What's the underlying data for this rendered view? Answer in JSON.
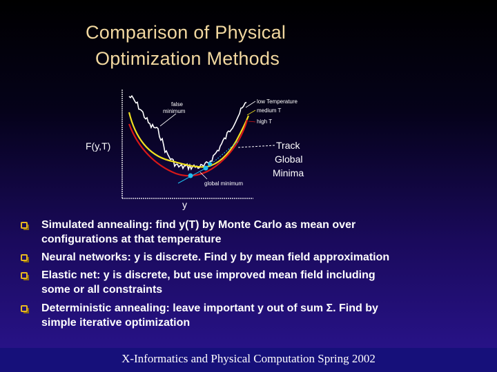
{
  "slide": {
    "title_line1": "Comparison of Physical",
    "title_line2": "Optimization Methods"
  },
  "figure": {
    "ylabel": "F(y,T)",
    "xlabel": "y",
    "labels": {
      "false_minimum_1": "false",
      "false_minimum_2": "minimum",
      "low_t": "low Temperature",
      "medium_t": "medium T",
      "high_t": "high T",
      "track_1": "Track",
      "track_2": "Global",
      "track_3": "Minima",
      "global_minimum": "global minimum"
    },
    "colors": {
      "low_t": "#ffffff",
      "medium_t": "#f0e020",
      "high_t": "#d81818",
      "tracker": "#20c0f0"
    }
  },
  "bullets": [
    {
      "line1": "Simulated annealing: find y(T) by Monte Carlo as mean over",
      "line2": "configurations at that temperature"
    },
    {
      "line1": "Neural networks: y is discrete.  Find y by mean field approximation",
      "line2": ""
    },
    {
      "line1": "Elastic net: y is discrete, but use improved mean field including",
      "line2": "some or all constraints"
    },
    {
      "line1": "Deterministic annealing: leave important y out of sum Σ.  Find by",
      "line2": "simple iterative optimization"
    }
  ],
  "footer": {
    "text": "X-Informatics and Physical Computation Spring 2002"
  }
}
